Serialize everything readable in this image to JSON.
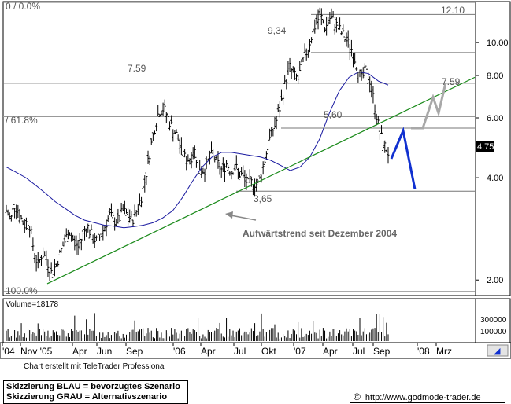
{
  "chart_data": {
    "type": "candlestick",
    "price_scale": "log",
    "ylim": [
      1.8,
      13.2
    ],
    "y_ticks": [
      "10.00",
      "8.00",
      "6.00",
      "4.00",
      "2.00"
    ],
    "x_ticks": [
      "'04",
      "Nov '05",
      "Apr",
      "Jun",
      "Sep",
      "'06",
      "Apr",
      "Jul",
      "Okt",
      "'07",
      "Apr",
      "Jul",
      "Sep",
      "'08",
      "Mrz"
    ],
    "last_price": "4.75",
    "volume": {
      "label": "Volume=18178",
      "y_ticks": [
        "300000",
        "100000"
      ]
    },
    "series": [
      {
        "name": "price",
        "style": "ohlc",
        "values": [
          3.2,
          3.0,
          3.4,
          3.1,
          2.9,
          3.0,
          2.5,
          2.2,
          2.4,
          2.3,
          2.1,
          2.2,
          2.4,
          2.6,
          2.8,
          2.6,
          2.5,
          2.7,
          2.9,
          2.7,
          2.6,
          2.7,
          2.9,
          3.1,
          3.0,
          3.0,
          3.2,
          3.1,
          3.0,
          3.2,
          3.5,
          4.0,
          4.8,
          5.6,
          6.3,
          6.4,
          6.0,
          5.6,
          5.3,
          4.8,
          4.5,
          4.6,
          4.8,
          4.3,
          4.2,
          4.5,
          4.7,
          4.4,
          4.2,
          4.4,
          4.2,
          4.3,
          4.1,
          4.0,
          3.8,
          3.9,
          3.8,
          4.2,
          4.8,
          5.4,
          5.8,
          6.5,
          7.5,
          8.5,
          8.0,
          7.8,
          8.8,
          9.5,
          10.5,
          11.5,
          12.0,
          11.0,
          11.8,
          11.5,
          11.0,
          10.5,
          10.0,
          9.5,
          8.6,
          7.8,
          8.2,
          7.7,
          6.5,
          5.5,
          5.0,
          4.75
        ]
      },
      {
        "name": "moving_average",
        "style": "line",
        "color": "#1a1aa0",
        "values": [
          4.3,
          4.15,
          4.0,
          3.8,
          3.6,
          3.4,
          3.25,
          3.1,
          3.0,
          2.95,
          2.9,
          2.88,
          2.85,
          2.87,
          2.9,
          2.95,
          3.05,
          3.2,
          3.5,
          3.9,
          4.3,
          4.6,
          4.75,
          4.75,
          4.7,
          4.65,
          4.6,
          4.5,
          4.35,
          4.2,
          4.3,
          4.6,
          5.2,
          6.2,
          7.2,
          7.9,
          8.2,
          8.1,
          7.7,
          7.5
        ]
      }
    ],
    "annotations": [
      "0 / 0.0%",
      "12.10",
      "9,34",
      "7.59",
      "7.59",
      "/ 61.8%",
      "5,60",
      "3,65",
      "100.0%",
      "Aufwärtstrend seit Dezember 2004"
    ],
    "levels": {
      "top": 12.1,
      "l934": 9.34,
      "l759": 7.59,
      "l560": 5.6,
      "l365": 3.65,
      "l100": 1.85
    },
    "trendline": {
      "color": "#1a8a1a",
      "from": 1.95,
      "to": 7.9
    },
    "scenario_blau": {
      "color": "#1030d0",
      "values": [
        4.55,
        5.5,
        3.7
      ]
    },
    "scenario_grau": {
      "color": "#a8a8a8",
      "values": [
        5.6,
        5.6,
        6.9,
        6.2,
        7.6
      ]
    }
  },
  "credit": "Chart erstellt mit TeleTrader Professional",
  "legend": {
    "line1": "Skizzierung BLAU = bevorzugtes Szenario",
    "line2": "Skizzierung GRAU = Alternativszenario"
  },
  "url": {
    "symbol": "©",
    "text": "http://www.godmode-trader.de"
  }
}
